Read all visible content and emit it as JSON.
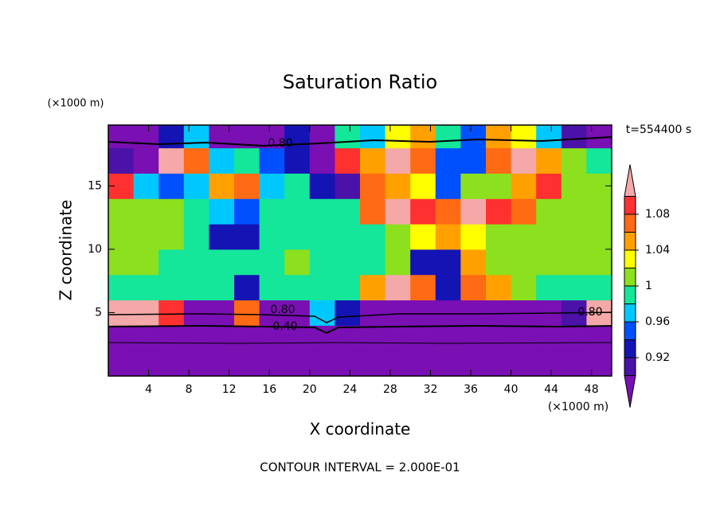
{
  "chart_data": {
    "type": "contour",
    "title": "Saturation Ratio",
    "x_label": "X coordinate",
    "y_label": "Z coordinate",
    "x_unit": "(×1000 m)",
    "y_unit": "(×1000 m)",
    "time_label": "t=554400 s",
    "footer": "CONTOUR INTERVAL = 2.000E-01",
    "contour_labels": [
      "0.80",
      "0.80",
      "0.80",
      "0.40"
    ],
    "xlim": [
      0,
      50
    ],
    "ylim": [
      0,
      19.8
    ],
    "xticks": [
      4,
      8,
      12,
      16,
      20,
      24,
      28,
      32,
      36,
      40,
      44,
      48
    ],
    "yticks": [
      5,
      10,
      15
    ],
    "x": [
      1.25,
      3.75,
      6.25,
      8.75,
      11.25,
      13.75,
      16.25,
      18.75,
      21.25,
      23.75,
      26.25,
      28.75,
      31.25,
      33.75,
      36.25,
      38.75,
      41.25,
      43.75,
      46.25,
      48.75
    ],
    "y": [
      1,
      3,
      5,
      7,
      9,
      11,
      13,
      15,
      17,
      19
    ],
    "z": [
      [
        0.3,
        0.3,
        0.3,
        0.3,
        0.3,
        0.3,
        0.3,
        0.3,
        0.3,
        0.3,
        0.3,
        0.3,
        0.3,
        0.3,
        0.3,
        0.3,
        0.3,
        0.3,
        0.3,
        0.3
      ],
      [
        0.5,
        0.5,
        0.5,
        0.5,
        0.5,
        0.5,
        0.5,
        0.5,
        0.5,
        0.5,
        0.5,
        0.5,
        0.5,
        0.5,
        0.5,
        0.5,
        0.5,
        0.5,
        0.5,
        0.5
      ],
      [
        1.12,
        1.12,
        1.08,
        0.88,
        0.88,
        1.06,
        0.88,
        0.88,
        0.96,
        0.92,
        0.88,
        0.88,
        0.88,
        0.88,
        0.88,
        0.88,
        0.88,
        0.88,
        0.9,
        1.12
      ],
      [
        0.99,
        0.99,
        0.99,
        0.99,
        0.99,
        0.93,
        0.99,
        0.99,
        0.99,
        0.99,
        1.05,
        1.12,
        1.07,
        0.92,
        1.07,
        1.05,
        1.01,
        0.99,
        0.99,
        0.99
      ],
      [
        1.01,
        1.01,
        0.99,
        0.99,
        0.99,
        0.99,
        0.99,
        1.01,
        0.99,
        0.99,
        0.99,
        1.01,
        0.93,
        0.92,
        1.05,
        1.01,
        1.01,
        1.01,
        1.01,
        1.01
      ],
      [
        1.01,
        1.01,
        1.01,
        0.99,
        0.93,
        0.92,
        0.99,
        0.99,
        0.99,
        0.99,
        0.99,
        1.01,
        1.03,
        1.05,
        1.03,
        1.01,
        1.01,
        1.01,
        1.01,
        1.01
      ],
      [
        1.01,
        1.01,
        1.01,
        0.99,
        0.97,
        0.95,
        0.99,
        0.99,
        0.99,
        0.99,
        1.07,
        1.11,
        1.09,
        1.07,
        1.11,
        1.09,
        1.07,
        1.01,
        1.01,
        1.01
      ],
      [
        1.09,
        0.97,
        0.95,
        0.97,
        1.05,
        1.07,
        0.97,
        0.99,
        0.93,
        0.91,
        1.07,
        1.05,
        1.03,
        0.95,
        1.01,
        1.01,
        1.05,
        1.09,
        1.01,
        1.01
      ],
      [
        0.91,
        0.89,
        1.11,
        1.07,
        0.97,
        0.99,
        0.95,
        0.93,
        0.89,
        1.09,
        1.05,
        1.11,
        1.07,
        0.95,
        0.95,
        1.07,
        1.11,
        1.05,
        1.01,
        0.99
      ],
      [
        0.85,
        0.85,
        0.93,
        0.97,
        0.89,
        0.87,
        0.89,
        0.93,
        0.85,
        0.99,
        0.97,
        1.03,
        1.05,
        0.99,
        0.95,
        1.05,
        1.03,
        0.97,
        0.91,
        0.85
      ]
    ],
    "levels": [
      0.9,
      0.92,
      0.94,
      0.96,
      0.98,
      1,
      1.02,
      1.04,
      1.06,
      1.08,
      1.1
    ],
    "colors": [
      "#7a0fb4",
      "#4a12a8",
      "#1414b4",
      "#0050ff",
      "#00c8ff",
      "#14e69a",
      "#8ce01e",
      "#ffff00",
      "#ffa000",
      "#ff6a14",
      "#ff3030",
      "#f4a8a8"
    ],
    "colorbar_ticks": [
      0.92,
      0.96,
      1,
      1.04,
      1.08
    ]
  }
}
